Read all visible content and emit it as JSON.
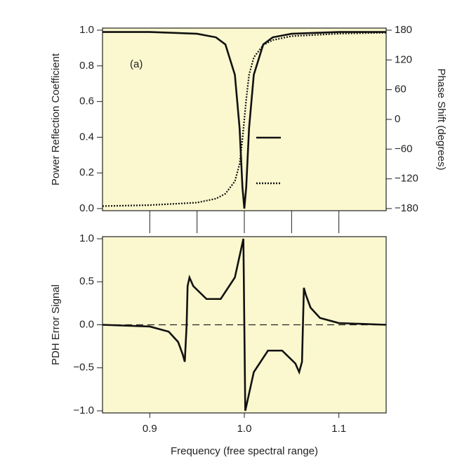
{
  "chart_data": [
    {
      "type": "line",
      "annotation": "(a)",
      "ylabel": "Power Reflection Coefficient",
      "y2label": "Phase Shift (degrees)",
      "xlim": [
        0.85,
        1.15
      ],
      "xticks": [
        0.9,
        0.95,
        1,
        1.05,
        1.1
      ],
      "ylim": [
        0,
        1
      ],
      "yticks": [
        {
          "value": 0,
          "label": "0.0"
        },
        0.2,
        0.4,
        0.6,
        0.8,
        {
          "value": 1,
          "label": "1.0"
        }
      ],
      "y2lim": [
        -180,
        180
      ],
      "y2ticks": [
        {
          "value": -180,
          "label": "−180"
        },
        {
          "value": -120,
          "label": "−120"
        },
        {
          "value": -60,
          "label": "−60"
        },
        0,
        60,
        120,
        180
      ],
      "x": [
        0.85,
        0.9,
        0.95,
        0.97,
        0.98,
        0.99,
        0.995,
        0.998,
        1.0,
        1.002,
        1.005,
        1.01,
        1.02,
        1.03,
        1.05,
        1.1,
        1.15
      ],
      "series": [
        {
          "color": "#111111",
          "dash": "solid",
          "values": [
            0.99,
            0.99,
            0.98,
            0.96,
            0.92,
            0.75,
            0.45,
            0.12,
            0.0,
            0.12,
            0.45,
            0.75,
            0.92,
            0.96,
            0.98,
            0.99,
            0.99
          ]
        },
        {
          "color": "#111111",
          "dash": "dotted",
          "axis": "y2",
          "values": [
            -175,
            -173,
            -168,
            -160,
            -150,
            -125,
            -90,
            -40,
            0,
            40,
            90,
            125,
            150,
            160,
            168,
            173,
            175
          ]
        }
      ]
    },
    {
      "type": "line",
      "ylabel": "PDH Error Signal",
      "xlabel": "Frequency (free spectral range)",
      "xlim": [
        0.85,
        1.15
      ],
      "xticks": [
        0.9,
        {
          "value": 1,
          "label": "1.0"
        },
        1.1
      ],
      "ylim": [
        -1,
        1
      ],
      "yticks": [
        {
          "value": -1,
          "label": "−1.0"
        },
        {
          "value": -0.5,
          "label": "−0.5"
        },
        {
          "value": 0,
          "label": "0.0"
        },
        0.5,
        {
          "value": 1,
          "label": "1.0"
        }
      ],
      "hline": 0,
      "x": [
        0.85,
        0.9,
        0.92,
        0.93,
        0.935,
        0.937,
        0.939,
        0.94,
        0.942,
        0.946,
        0.96,
        0.975,
        0.99,
        0.997,
        0.999,
        1.0,
        1.001,
        1.003,
        1.01,
        1.025,
        1.04,
        1.054,
        1.058,
        1.061,
        1.062,
        1.063,
        1.065,
        1.07,
        1.08,
        1.1,
        1.15
      ],
      "series": [
        {
          "color": "#111111",
          "dash": "solid",
          "values": [
            0,
            -0.02,
            -0.08,
            -0.2,
            -0.35,
            -0.43,
            0.0,
            0.45,
            0.55,
            0.45,
            0.3,
            0.3,
            0.55,
            0.9,
            1.0,
            0,
            -1.0,
            -0.9,
            -0.55,
            -0.3,
            -0.3,
            -0.45,
            -0.55,
            -0.43,
            0.0,
            0.43,
            0.35,
            0.2,
            0.08,
            0.02,
            0
          ]
        }
      ]
    }
  ]
}
